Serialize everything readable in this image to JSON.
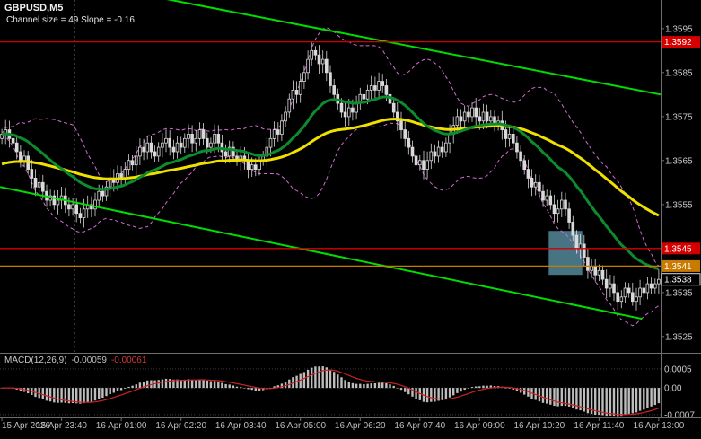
{
  "chart": {
    "symbol_period": "GBPUSD,M5",
    "channel_info": "Channel size = 49 Slope = -0.16"
  },
  "price_axis": {
    "plain": [
      {
        "text": "1.3595",
        "level": 1.3595
      },
      {
        "text": "1.3585",
        "level": 1.3585
      },
      {
        "text": "1.3575",
        "level": 1.3575
      },
      {
        "text": "1.3565",
        "level": 1.3565
      },
      {
        "text": "1.3555",
        "level": 1.3555
      },
      {
        "text": "1.3535",
        "level": 1.3535
      },
      {
        "text": "1.3525",
        "level": 1.3525
      }
    ],
    "badges": [
      {
        "text": "1.3592",
        "level": 1.3592,
        "bg": "#d40000",
        "fg": "#ffffff"
      },
      {
        "text": "1.3545",
        "level": 1.3545,
        "bg": "#d40000",
        "fg": "#ffffff"
      },
      {
        "text": "1.3541",
        "level": 1.3541,
        "bg": "#c97a00",
        "fg": "#ffffff"
      },
      {
        "text": "1.3538",
        "level": 1.3538,
        "bg": "#000000",
        "fg": "#ffffff",
        "border": "#d9d9d9"
      }
    ]
  },
  "time_axis": {
    "labels": [
      "15 Apr 2026",
      "15 Apr 23:40",
      "16 Apr 01:00",
      "16 Apr 02:20",
      "16 Apr 03:40",
      "16 Apr 05:00",
      "16 Apr 06:20",
      "16 Apr 07:40",
      "16 Apr 09:00",
      "16 Apr 10:20",
      "16 Apr 11:40",
      "16 Apr 13:00"
    ],
    "tick_indices": [
      0,
      16,
      32,
      48,
      64,
      80,
      96,
      112,
      128,
      144,
      160,
      176
    ]
  },
  "macd_panel": {
    "label": "MACD(12,26,9)",
    "main_value": "-0.00059",
    "signal_value": "-0.00061",
    "axis": [
      "0.0005",
      "0.00",
      "-0.0007"
    ]
  },
  "chart_data": {
    "type": "candlestick",
    "symbol": "GBPUSD",
    "timeframe": "M5",
    "ylim": [
      1.35215,
      1.36015
    ],
    "open_first": 1.357,
    "closes": [
      1.3571,
      1.3572,
      1.357,
      1.3569,
      1.3567,
      1.3565,
      1.3566,
      1.3563,
      1.3561,
      1.3559,
      1.356,
      1.3558,
      1.3556,
      1.3557,
      1.3555,
      1.3556,
      1.3557,
      1.3555,
      1.3554,
      1.3555,
      1.3553,
      1.3552,
      1.3554,
      1.3555,
      1.3554,
      1.3556,
      1.3558,
      1.3557,
      1.3559,
      1.3561,
      1.356,
      1.3562,
      1.3561,
      1.3563,
      1.3565,
      1.3564,
      1.3566,
      1.3568,
      1.3567,
      1.3569,
      1.3567,
      1.3566,
      1.3568,
      1.3569,
      1.357,
      1.3568,
      1.3567,
      1.3569,
      1.3568,
      1.357,
      1.3571,
      1.3569,
      1.357,
      1.3572,
      1.357,
      1.3568,
      1.3569,
      1.3571,
      1.3569,
      1.3567,
      1.3566,
      1.3568,
      1.3566,
      1.3565,
      1.3566,
      1.3565,
      1.3563,
      1.3564,
      1.3563,
      1.3565,
      1.3566,
      1.3568,
      1.357,
      1.3572,
      1.3571,
      1.3574,
      1.3576,
      1.3579,
      1.3581,
      1.358,
      1.3583,
      1.3585,
      1.3588,
      1.359,
      1.3589,
      1.3587,
      1.3588,
      1.3585,
      1.3582,
      1.358,
      1.3578,
      1.3576,
      1.3575,
      1.3577,
      1.3576,
      1.3578,
      1.358,
      1.3579,
      1.3581,
      1.3582,
      1.3581,
      1.3583,
      1.3582,
      1.358,
      1.3578,
      1.3576,
      1.3574,
      1.3572,
      1.357,
      1.3568,
      1.3566,
      1.3564,
      1.3565,
      1.3563,
      1.3565,
      1.3567,
      1.3566,
      1.3568,
      1.3567,
      1.3569,
      1.3571,
      1.3573,
      1.3575,
      1.3574,
      1.3576,
      1.3575,
      1.3577,
      1.3575,
      1.3574,
      1.3576,
      1.3574,
      1.3575,
      1.3573,
      1.3574,
      1.3572,
      1.357,
      1.3571,
      1.3569,
      1.3567,
      1.3565,
      1.3563,
      1.3561,
      1.3559,
      1.356,
      1.3558,
      1.3556,
      1.3557,
      1.3555,
      1.3553,
      1.3554,
      1.3556,
      1.3554,
      1.3551,
      1.3548,
      1.3545,
      1.3546,
      1.3543,
      1.354,
      1.3541,
      1.3539,
      1.354,
      1.3538,
      1.3536,
      1.3537,
      1.3535,
      1.3533,
      1.3534,
      1.3536,
      1.3535,
      1.3533,
      1.3534,
      1.3536,
      1.3535,
      1.3537,
      1.3536,
      1.3537,
      1.3538
    ],
    "default_wick": 0.00012,
    "special_highs": {
      "82": 1.359,
      "83": 1.3592,
      "84": 1.3591,
      "101": 1.3585
    },
    "special_lows": {
      "20": 1.3551,
      "66": 1.3561,
      "148": 1.3551,
      "165": 1.3531,
      "169": 1.3532
    },
    "overlays": {
      "ema_fast": {
        "period": 25,
        "color": "#0c8c2c",
        "width": 3
      },
      "ema_slow": {
        "period": 70,
        "seed": 1.3564,
        "color": "#f0e000",
        "width": 3
      },
      "bollinger": {
        "period": 20,
        "dev": 2,
        "color": "#cf6ccf"
      }
    },
    "hlines": [
      {
        "price": 1.3592,
        "color": "#d40000"
      },
      {
        "price": 1.3545,
        "color": "#d40000"
      },
      {
        "price": 1.3541,
        "color": "#c97a00"
      }
    ],
    "current_price": 1.3538,
    "channel": {
      "color": "#00dd00",
      "upper": {
        "f1": 0.0,
        "p1": 1.3609,
        "f2": 1.0,
        "p2": 1.358
      },
      "lower": {
        "f1": 0.0,
        "p1": 1.3559,
        "f2": 0.972,
        "p2": 1.3529
      }
    },
    "zone_rect": {
      "i1": 147,
      "i2": 155,
      "price_top": 1.3549,
      "price_bottom": 1.3539,
      "color": "#4e8191"
    },
    "separator_index": 20,
    "macd": {
      "fast": 12,
      "slow": 26,
      "signal": 9,
      "ylim": [
        -0.00075,
        0.00085
      ],
      "grid": [
        0.0005,
        0,
        -0.0007
      ]
    }
  }
}
